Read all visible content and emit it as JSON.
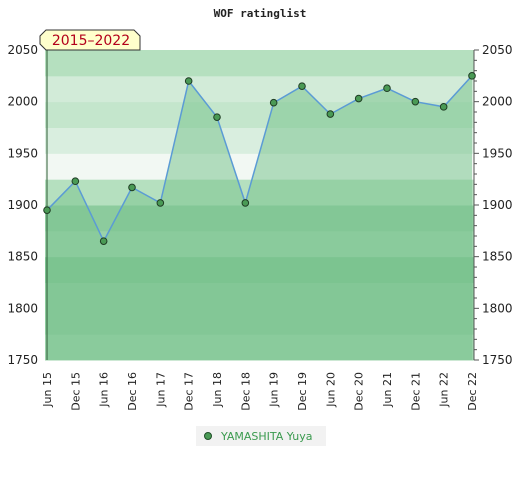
{
  "chart_data": {
    "type": "area",
    "title": "WOF ratinglist",
    "period_badge": "2015–2022",
    "categories": [
      "Jun 15",
      "Dec 15",
      "Jun 16",
      "Dec 16",
      "Jun 17",
      "Dec 17",
      "Jun 18",
      "Dec 18",
      "Jun 19",
      "Dec 19",
      "Jun 20",
      "Dec 20",
      "Jun 21",
      "Dec 21",
      "Jun 22",
      "Dec 22"
    ],
    "series": [
      {
        "name": "YAMASHITA Yuya",
        "values": [
          1895,
          1923,
          1865,
          1917,
          1902,
          2020,
          1985,
          1902,
          1999,
          2015,
          1988,
          2003,
          2013,
          2000,
          1995,
          2025
        ]
      }
    ],
    "ylim": [
      1750,
      2050
    ],
    "yticks": [
      "1750",
      "1800",
      "1850",
      "1900",
      "1950",
      "2000",
      "2050"
    ],
    "grid": true,
    "legend": "bottom-center",
    "colors": {
      "line": "#5b9bd5",
      "marker": "#4a9a55",
      "area": "#7cc58f",
      "legend_text": "#3a9a4e",
      "badge_bg": "#ffffcc",
      "badge_text": "#b3001b"
    }
  }
}
